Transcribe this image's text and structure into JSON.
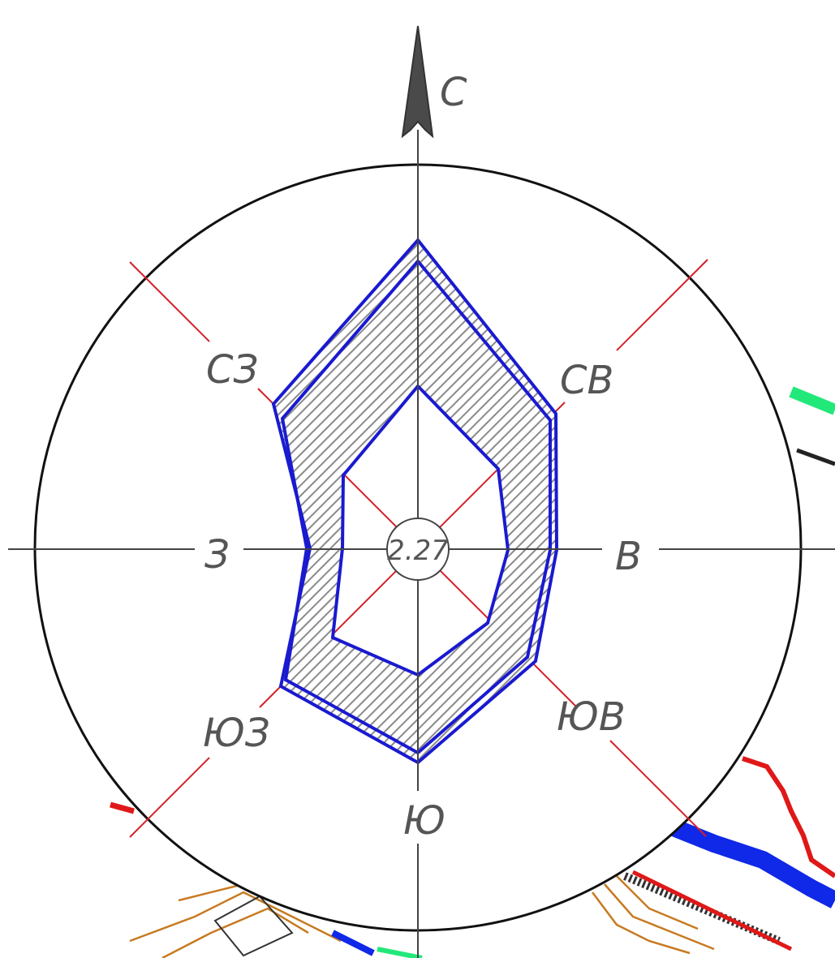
{
  "compass": {
    "north_label": "С",
    "northeast_label": "СВ",
    "east_label": "В",
    "southeast_label": "ЮВ",
    "south_label": "Ю",
    "southwest_label": "ЮЗ",
    "west_label": "З",
    "northwest_label": "СЗ"
  },
  "center_value": "2.27",
  "colors": {
    "outline": "#1a1ad0",
    "hatch": "#8a8a8a",
    "diagonal_axis": "#d4202a",
    "circle": "#111111",
    "axis": "#444444",
    "label": "#555555",
    "map_red": "#e01818",
    "map_blue": "#1028e8",
    "map_green": "#22e87a",
    "map_contour": "#c87a20"
  }
}
